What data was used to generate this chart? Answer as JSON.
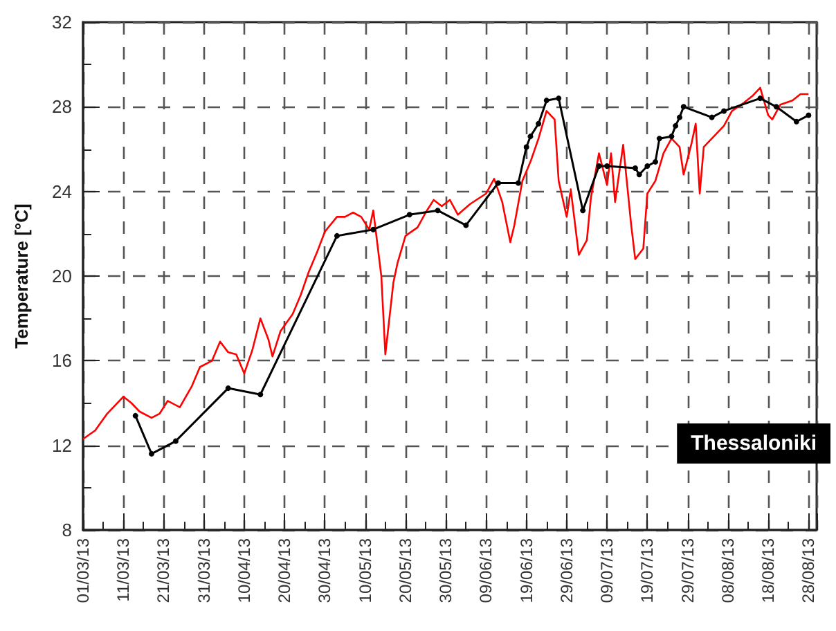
{
  "chart_data": {
    "type": "line",
    "ylabel": "Temperature [°C]",
    "annotations": [
      "Thessaloniki"
    ],
    "xlim": [
      "--03-01",
      "--08-30"
    ],
    "xticks": [
      {
        "value": "--03-01",
        "label": "01/03/13"
      },
      {
        "value": "--03-11",
        "label": "11/03/13"
      },
      {
        "value": "--03-21",
        "label": "21/03/13"
      },
      {
        "value": "--03-31",
        "label": "31/03/13"
      },
      {
        "value": "--04-10",
        "label": "10/04/13"
      },
      {
        "value": "--04-20",
        "label": "20/04/13"
      },
      {
        "value": "--04-30",
        "label": "30/04/13"
      },
      {
        "value": "--05-10",
        "label": "10/05/13"
      },
      {
        "value": "--05-20",
        "label": "20/05/13"
      },
      {
        "value": "--05-30",
        "label": "30/05/13"
      },
      {
        "value": "--06-09",
        "label": "09/06/13"
      },
      {
        "value": "--06-19",
        "label": "19/06/13"
      },
      {
        "value": "--06-29",
        "label": "29/06/13"
      },
      {
        "value": "--07-09",
        "label": "09/07/13"
      },
      {
        "value": "--07-19",
        "label": "19/07/13"
      },
      {
        "value": "--07-29",
        "label": "29/07/13"
      },
      {
        "value": "--08-08",
        "label": "08/08/13"
      },
      {
        "value": "--08-18",
        "label": "18/08/13"
      },
      {
        "value": "--08-28",
        "label": "28/08/13"
      }
    ],
    "ylim": [
      8,
      32
    ],
    "yticks": [
      8,
      12,
      16,
      20,
      24,
      28,
      32
    ],
    "grid": true,
    "series": [
      {
        "color": "#ff0000",
        "marker": "none",
        "x": [
          "--03-01",
          "--03-04",
          "--03-07",
          "--03-11",
          "--03-13",
          "--03-15",
          "--03-18",
          "--03-20",
          "--03-22",
          "--03-25",
          "--03-28",
          "--03-30",
          "--04-02",
          "--04-04",
          "--04-06",
          "--04-08",
          "--04-10",
          "--04-12",
          "--04-14",
          "--04-16",
          "--04-17",
          "--04-19",
          "--04-22",
          "--04-24",
          "--04-26",
          "--04-28",
          "--04-30",
          "--05-03",
          "--05-05",
          "--05-07",
          "--05-09",
          "--05-11",
          "--05-12",
          "--05-14",
          "--05-15",
          "--05-17",
          "--05-18",
          "--05-20",
          "--05-23",
          "--05-25",
          "--05-27",
          "--05-29",
          "--05-31",
          "--06-02",
          "--06-05",
          "--06-09",
          "--06-11",
          "--06-13",
          "--06-15",
          "--06-16",
          "--06-18",
          "--06-20",
          "--06-22",
          "--06-24",
          "--06-26",
          "--06-27",
          "--06-29",
          "--06-30",
          "--07-02",
          "--07-04",
          "--07-05",
          "--07-07",
          "--07-09",
          "--07-10",
          "--07-11",
          "--07-13",
          "--07-15",
          "--07-16",
          "--07-18",
          "--07-19",
          "--07-21",
          "--07-23",
          "--07-25",
          "--07-27",
          "--07-28",
          "--07-30",
          "--07-31",
          "--08-01",
          "--08-02",
          "--08-05",
          "--08-07",
          "--08-09",
          "--08-12",
          "--08-14",
          "--08-16",
          "--08-18",
          "--08-19",
          "--08-21",
          "--08-24",
          "--08-26",
          "--08-28"
        ],
        "values": [
          12.3,
          12.7,
          13.5,
          14.3,
          14.0,
          13.6,
          13.3,
          13.5,
          14.1,
          13.8,
          14.8,
          15.7,
          16.0,
          16.9,
          16.4,
          16.3,
          15.4,
          16.5,
          18.0,
          17.0,
          16.2,
          17.4,
          18.2,
          19.1,
          20.2,
          21.1,
          22.1,
          22.8,
          22.8,
          23.0,
          22.8,
          22.2,
          23.1,
          20.0,
          16.3,
          19.7,
          20.6,
          21.9,
          22.3,
          23.0,
          23.6,
          23.3,
          23.6,
          22.9,
          23.4,
          23.9,
          24.6,
          23.5,
          21.6,
          22.4,
          24.5,
          25.4,
          26.5,
          27.8,
          27.4,
          24.5,
          22.8,
          24.1,
          21.0,
          21.7,
          23.7,
          25.8,
          24.3,
          25.8,
          23.5,
          26.2,
          22.4,
          20.8,
          21.3,
          23.9,
          24.5,
          25.8,
          26.5,
          26.1,
          24.8,
          26.3,
          27.2,
          23.9,
          26.1,
          26.7,
          27.1,
          27.8,
          28.2,
          28.5,
          28.9,
          27.6,
          27.4,
          28.1,
          28.3,
          28.6,
          28.6
        ]
      },
      {
        "color": "#000000",
        "marker": "circle",
        "x": [
          "--03-14",
          "--03-18",
          "--03-24",
          "--04-06",
          "--04-14",
          "--05-03",
          "--05-12",
          "--05-21",
          "--05-28",
          "--06-04",
          "--06-12",
          "--06-17",
          "--06-19",
          "--06-20",
          "--06-22",
          "--06-24",
          "--06-27",
          "--07-03",
          "--07-07",
          "--07-09",
          "--07-16",
          "--07-17",
          "--07-19",
          "--07-21",
          "--07-22",
          "--07-25",
          "--07-26",
          "--07-27",
          "--07-28",
          "--08-04",
          "--08-07",
          "--08-16",
          "--08-20",
          "--08-25",
          "--08-28"
        ],
        "values": [
          13.4,
          11.6,
          12.2,
          14.7,
          14.4,
          21.9,
          22.2,
          22.9,
          23.1,
          22.4,
          24.4,
          24.4,
          26.1,
          26.6,
          27.2,
          28.3,
          28.4,
          23.1,
          25.2,
          25.2,
          25.1,
          24.8,
          25.2,
          25.4,
          26.5,
          26.6,
          27.1,
          27.5,
          28.0,
          27.5,
          27.8,
          28.4,
          28.0,
          27.3,
          27.6
        ]
      }
    ]
  }
}
